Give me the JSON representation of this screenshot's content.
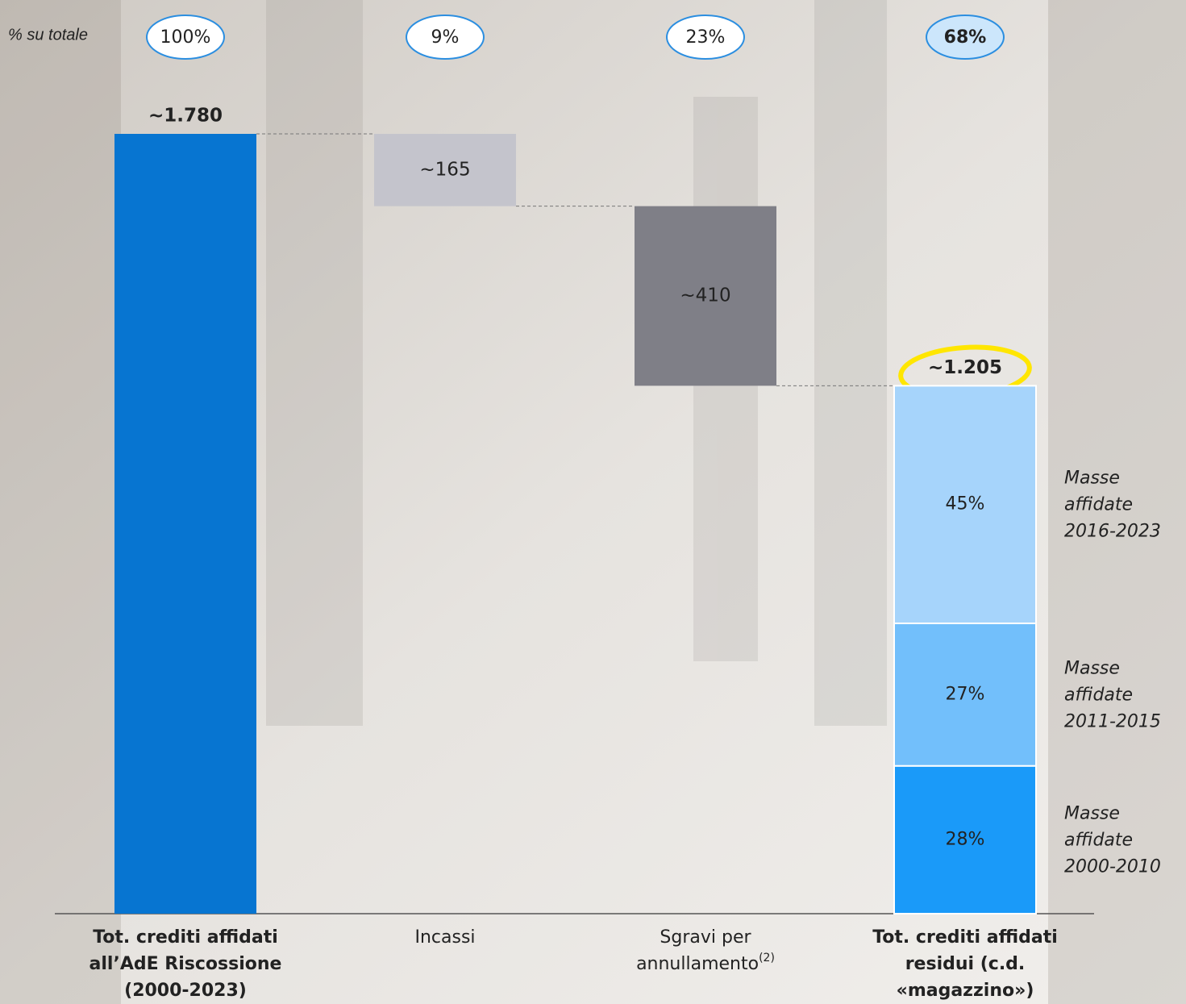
{
  "chart_data": {
    "type": "waterfall",
    "shares": {
      "label": "% su totale",
      "values": [
        100,
        9,
        23,
        68
      ],
      "value_labels": [
        "100%",
        "9%",
        "23%",
        "68%"
      ]
    },
    "categories": [
      [
        "Tot. crediti affidati",
        "all’AdE Riscossione",
        "(2000-2023)"
      ],
      [
        "Incassi"
      ],
      [
        "Sgravi per",
        "annullamento"
      ],
      [
        "Tot. crediti affidati",
        "residui (c.d.",
        "«magazzino»)"
      ]
    ],
    "category_superscripts": [
      null,
      null,
      "(2)",
      null
    ],
    "kinds": [
      "total",
      "decrease",
      "decrease",
      "total"
    ],
    "values": [
      1780,
      165,
      410,
      1205
    ],
    "value_labels": [
      "~1.780",
      "~165",
      "~410",
      "~1.205"
    ],
    "colors": [
      "#0775d1",
      "#c4c4cc",
      "#7f7f87",
      null
    ],
    "breakdown": {
      "values": [
        28,
        27,
        45
      ],
      "value_labels": [
        "28%",
        "27%",
        "45%"
      ],
      "colors": [
        "#1a9af9",
        "#72bffb",
        "#a6d4fb"
      ],
      "names": [
        [
          "Masse",
          "affidate",
          "2000-2010"
        ],
        [
          "Masse",
          "affidate",
          "2011-2015"
        ],
        [
          "Masse",
          "affidate",
          "2016-2023"
        ]
      ]
    }
  }
}
